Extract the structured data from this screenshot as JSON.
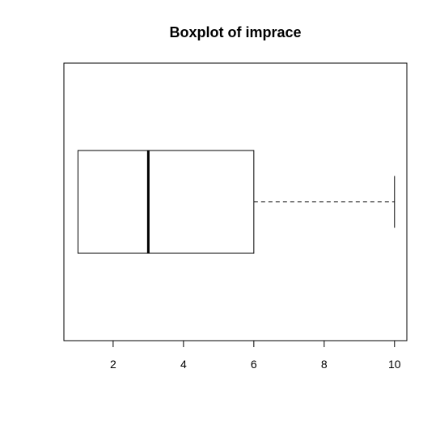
{
  "chart_data": {
    "type": "boxplot",
    "orientation": "horizontal",
    "title": "Boxplot of imprace",
    "xlabel": "",
    "ylabel": "",
    "xlim": [
      0.6,
      10.35
    ],
    "ticks": [
      2,
      4,
      6,
      8,
      10
    ],
    "tick_labels": [
      "2",
      "4",
      "6",
      "8",
      "10"
    ],
    "stats": {
      "whisker_low": 1,
      "q1": 1,
      "median": 3,
      "q3": 6,
      "whisker_high": 10
    },
    "outliers": [],
    "grid": false,
    "colors": {
      "box_fill": "#ffffff",
      "stroke": "#000000"
    }
  }
}
